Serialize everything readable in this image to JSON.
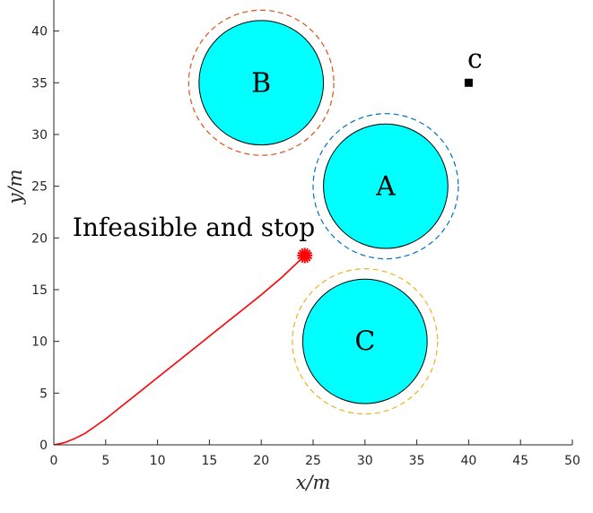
{
  "chart_data": {
    "type": "scatter",
    "xlabel": "x/m",
    "ylabel": "y/m",
    "xlim": [
      0,
      50
    ],
    "ylim": [
      0,
      43
    ],
    "xticks": [
      0,
      5,
      10,
      15,
      20,
      25,
      30,
      35,
      40,
      45,
      50
    ],
    "yticks": [
      0,
      5,
      10,
      15,
      20,
      25,
      30,
      35,
      40
    ],
    "grid": false,
    "obstacles": [
      {
        "label": "A",
        "center": [
          32,
          25
        ],
        "radius": 6,
        "safety_radius": 7,
        "fill": "#00ffff",
        "ring_color": "#0072bd"
      },
      {
        "label": "B",
        "center": [
          20,
          35
        ],
        "radius": 6,
        "safety_radius": 7,
        "fill": "#00ffff",
        "ring_color": "#d95319"
      },
      {
        "label": "C",
        "center": [
          30,
          10
        ],
        "radius": 6,
        "safety_radius": 7,
        "fill": "#00ffff",
        "ring_color": "#edb120"
      }
    ],
    "target": {
      "label": "c",
      "point": [
        40,
        35
      ],
      "color": "#000000"
    },
    "trajectory": {
      "color": "#ff0000",
      "x": [
        0,
        1,
        2,
        3,
        4,
        5,
        6,
        8,
        10,
        12,
        14,
        16,
        18,
        20,
        22,
        24.2
      ],
      "y": [
        0,
        0.2,
        0.6,
        1.1,
        1.8,
        2.5,
        3.3,
        4.9,
        6.5,
        8.1,
        9.7,
        11.3,
        12.9,
        14.5,
        16.2,
        18.3
      ]
    },
    "stop_point": {
      "point": [
        24.2,
        18.3
      ],
      "color": "#ff0000"
    },
    "annotation": "Infeasible and stop"
  }
}
